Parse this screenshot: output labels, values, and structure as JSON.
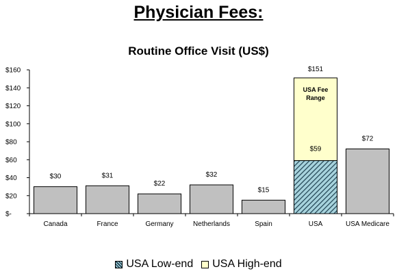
{
  "chart_data": {
    "type": "bar",
    "title": "Physician Fees:",
    "subtitle": "Routine Office Visit (US$)",
    "xlabel": "",
    "ylabel": "",
    "ylim": [
      0,
      160
    ],
    "yticks": [
      0,
      20,
      40,
      60,
      80,
      100,
      120,
      140,
      160
    ],
    "ytick_labels": [
      "$-",
      "$20",
      "$40",
      "$60",
      "$80",
      "$100",
      "$120",
      "$140",
      "$160"
    ],
    "categories": [
      "Canada",
      "France",
      "Germany",
      "Netherlands",
      "Spain",
      "USA",
      "USA Medicare"
    ],
    "values": [
      30,
      31,
      22,
      32,
      15,
      151,
      72
    ],
    "data_labels": [
      "$30",
      "$31",
      "$22",
      "$32",
      "$15",
      "$151",
      "$72"
    ],
    "usa_range": {
      "category": "USA",
      "low_value": 59,
      "low_label": "$59",
      "high_value": 151,
      "annotation": [
        "USA Fee",
        "Range"
      ]
    },
    "legend": {
      "placement": "bottom",
      "entries": [
        {
          "label": "USA Low-end",
          "pattern": "hatched",
          "color": "#a7d3dd"
        },
        {
          "label": "USA High-end",
          "pattern": "solid",
          "color": "#ffffcc"
        }
      ]
    },
    "colors": {
      "bar": "#c0c0c0",
      "low_end_fill": "#a7d3dd",
      "low_end_hatch": "#1d3f4f",
      "high_end_fill": "#ffffcc"
    },
    "grid": false
  }
}
